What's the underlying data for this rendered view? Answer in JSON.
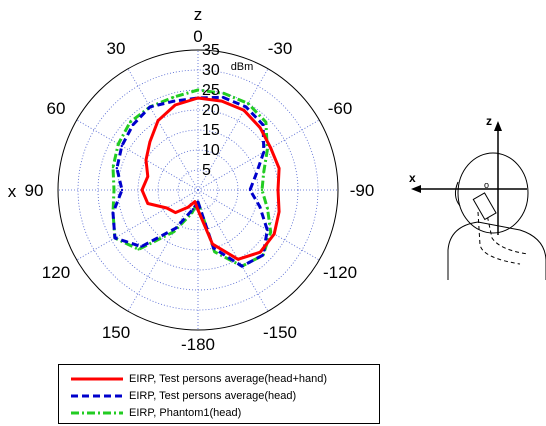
{
  "chart_data": {
    "type": "polar-line",
    "unit": "dBm",
    "radial_range": [
      0,
      35
    ],
    "radial_ticks": [
      5,
      10,
      15,
      20,
      25,
      30,
      35
    ],
    "angle_tick_labels": [
      "0",
      "30",
      "60",
      "90",
      "120",
      "150",
      "-180",
      "-150",
      "-120",
      "-90",
      "-60",
      "-30"
    ],
    "axis_labels": {
      "top": "z",
      "left": "x"
    },
    "grid": true,
    "legend_position": "bottom",
    "series": [
      {
        "name": "EIRP, Test persons average(head+hand)",
        "color": "#ff0000",
        "style": "solid",
        "angles": [
          -180,
          -165,
          -150,
          -135,
          -120,
          -105,
          -90,
          -75,
          -60,
          -45,
          -30,
          -15,
          0,
          15,
          30,
          45,
          60,
          75,
          90,
          105,
          120,
          135,
          150,
          165
        ],
        "values": [
          5,
          14,
          20,
          22,
          22,
          21,
          20,
          21,
          21,
          22,
          23,
          23,
          23,
          22,
          20,
          17,
          15,
          13,
          14,
          13,
          9,
          8,
          5,
          3
        ]
      },
      {
        "name": "EIRP, Test persons average(head)",
        "color": "#0000cc",
        "style": "dashed",
        "angles": [
          -180,
          -165,
          -150,
          -135,
          -120,
          -105,
          -90,
          -75,
          -60,
          -45,
          -30,
          -15,
          0,
          15,
          30,
          45,
          60,
          75,
          90,
          105,
          120,
          135,
          150,
          165
        ],
        "values": [
          3,
          15,
          22,
          23,
          20,
          16,
          13,
          15,
          19,
          23,
          24,
          24,
          23,
          23,
          24,
          23,
          22,
          21,
          19,
          22,
          24,
          20,
          11,
          5
        ]
      },
      {
        "name": "EIRP, Phantom1(head)",
        "color": "#22cc22",
        "style": "dashdot",
        "angles": [
          -180,
          -165,
          -150,
          -135,
          -120,
          -105,
          -90,
          -75,
          -60,
          -45,
          -30,
          -15,
          0,
          15,
          30,
          45,
          60,
          75,
          90,
          105,
          120,
          135,
          150,
          165
        ],
        "values": [
          3,
          16,
          22,
          23,
          21,
          18,
          16,
          17,
          20,
          24,
          25,
          25,
          25,
          24,
          24,
          24,
          23,
          22,
          21,
          22,
          24,
          21,
          12,
          6
        ]
      }
    ]
  },
  "diagram": {
    "z_label": "z",
    "x_label": "x",
    "device_label": "o"
  }
}
